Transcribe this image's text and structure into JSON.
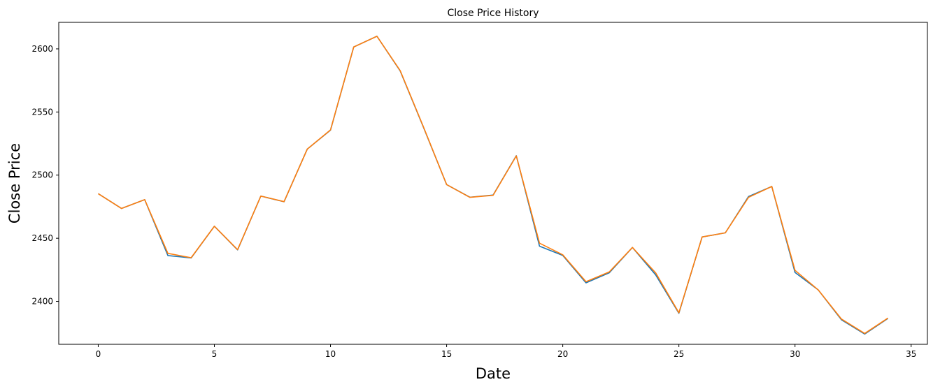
{
  "chart_data": {
    "type": "line",
    "title": "Close Price History",
    "xlabel": "Date",
    "ylabel": "Close Price",
    "xlim": [
      -1.7,
      35.7
    ],
    "ylim": [
      2366,
      2621
    ],
    "xticks": [
      0,
      5,
      10,
      15,
      20,
      25,
      30,
      35
    ],
    "yticks": [
      2400,
      2450,
      2500,
      2550,
      2600
    ],
    "grid": false,
    "legend": "none",
    "x": [
      0,
      1,
      2,
      3,
      4,
      5,
      6,
      7,
      8,
      9,
      10,
      11,
      12,
      13,
      14,
      15,
      16,
      17,
      18,
      19,
      20,
      21,
      22,
      23,
      24,
      25,
      26,
      27,
      28,
      29,
      30,
      31,
      32,
      33,
      34
    ],
    "series": [
      {
        "color": "#1f77b4",
        "values": [
          2485.3,
          2473.6,
          2480.6,
          2436.3,
          2434.4,
          2459.5,
          2440.8,
          2483.4,
          2478.9,
          2520.6,
          2535.6,
          2601.5,
          2610.0,
          2582.5,
          2538.0,
          2492.5,
          2482.5,
          2484.2,
          2515.4,
          2443.7,
          2436.4,
          2414.7,
          2422.6,
          2442.7,
          2421.0,
          2390.6,
          2451.0,
          2454.3,
          2483.1,
          2491.0,
          2422.9,
          2409.1,
          2385.4,
          2374.1,
          2386.5
        ]
      },
      {
        "color": "#ff7f0e",
        "values": [
          2485.3,
          2473.6,
          2480.6,
          2438.0,
          2434.6,
          2459.5,
          2441.0,
          2483.4,
          2479.0,
          2520.6,
          2535.8,
          2601.5,
          2610.0,
          2582.8,
          2538.3,
          2492.5,
          2482.4,
          2484.0,
          2515.2,
          2446.1,
          2436.9,
          2415.6,
          2423.3,
          2442.7,
          2422.6,
          2391.0,
          2451.0,
          2454.3,
          2482.4,
          2491.0,
          2424.6,
          2409.1,
          2386.0,
          2374.6,
          2386.8
        ]
      }
    ]
  }
}
